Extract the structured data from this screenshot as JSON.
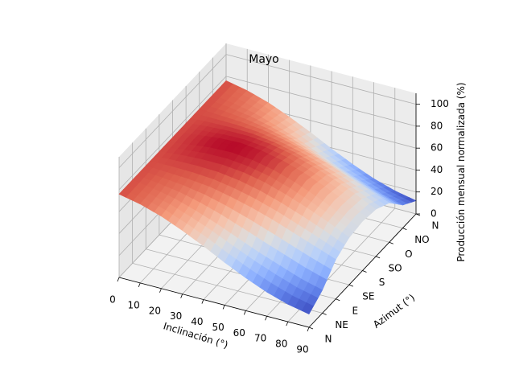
{
  "chart_data": {
    "type": "surface3d",
    "title": "Mayo",
    "xlabel": "Inclinación (°)",
    "ylabel": "Azimut (°)",
    "zlabel": "Producción mensual normalizada (%)",
    "x_ticks": [
      "0",
      "10",
      "20",
      "30",
      "40",
      "50",
      "60",
      "70",
      "80",
      "90"
    ],
    "y_ticks": [
      "N",
      "NE",
      "E",
      "SE",
      "S",
      "SO",
      "O",
      "NO",
      "N"
    ],
    "z_ticks": [
      "0",
      "20",
      "40",
      "60",
      "80",
      "100"
    ],
    "xlim": [
      0,
      90
    ],
    "zlim": [
      0,
      110
    ],
    "colormap": "coolwarm",
    "inclination": [
      0,
      10,
      20,
      30,
      40,
      50,
      60,
      70,
      80,
      90
    ],
    "azimuth": [
      "N",
      "NE",
      "E",
      "SE",
      "S",
      "SO",
      "O",
      "NO",
      "N"
    ],
    "production": [
      [
        76,
        76,
        76,
        76,
        76,
        76,
        76,
        76,
        76
      ],
      [
        72,
        73,
        75,
        78,
        79,
        78,
        75,
        73,
        72
      ],
      [
        66,
        69,
        74,
        79,
        82,
        79,
        74,
        69,
        66
      ],
      [
        58,
        63,
        72,
        79,
        83,
        79,
        72,
        63,
        58
      ],
      [
        49,
        56,
        68,
        77,
        81,
        77,
        68,
        56,
        49
      ],
      [
        39,
        48,
        63,
        73,
        77,
        73,
        63,
        48,
        39
      ],
      [
        30,
        40,
        57,
        67,
        71,
        67,
        57,
        40,
        30
      ],
      [
        22,
        33,
        50,
        60,
        63,
        60,
        50,
        33,
        22
      ],
      [
        16,
        26,
        43,
        52,
        54,
        52,
        43,
        26,
        16
      ],
      [
        12,
        21,
        36,
        43,
        45,
        43,
        36,
        21,
        12
      ]
    ]
  }
}
